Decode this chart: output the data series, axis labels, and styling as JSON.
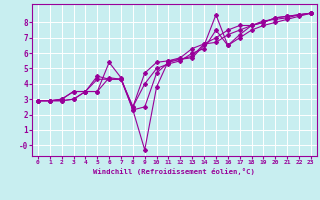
{
  "title": "",
  "xlabel": "Windchill (Refroidissement éolien,°C)",
  "ylabel": "",
  "bg_color": "#c8eef0",
  "line_color": "#990099",
  "grid_color": "#ffffff",
  "xlim": [
    -0.5,
    23.5
  ],
  "ylim": [
    -0.7,
    9.2
  ],
  "yticks": [
    0,
    1,
    2,
    3,
    4,
    5,
    6,
    7,
    8
  ],
  "ytick_labels": [
    "-0",
    "1",
    "2",
    "3",
    "4",
    "5",
    "6",
    "7",
    "8"
  ],
  "xticks": [
    0,
    1,
    2,
    3,
    4,
    5,
    6,
    7,
    8,
    9,
    10,
    11,
    12,
    13,
    14,
    15,
    16,
    17,
    18,
    19,
    20,
    21,
    22,
    23
  ],
  "series": [
    [
      2.9,
      2.9,
      2.9,
      3.0,
      3.5,
      3.5,
      5.4,
      4.4,
      2.3,
      -0.3,
      3.8,
      5.5,
      5.6,
      5.7,
      6.5,
      8.5,
      6.5,
      7.2,
      7.8,
      8.0,
      8.3,
      8.4,
      8.5,
      8.6
    ],
    [
      2.9,
      2.9,
      2.9,
      3.0,
      3.5,
      3.5,
      4.4,
      4.3,
      2.3,
      2.5,
      4.7,
      5.4,
      5.6,
      5.8,
      6.6,
      7.0,
      7.5,
      7.8,
      7.8,
      8.0,
      8.3,
      8.4,
      8.5,
      8.6
    ],
    [
      2.9,
      2.9,
      3.0,
      3.5,
      3.5,
      4.5,
      4.3,
      4.3,
      2.5,
      4.7,
      5.4,
      5.5,
      5.7,
      6.3,
      6.6,
      6.7,
      7.2,
      7.5,
      7.8,
      8.1,
      8.2,
      8.3,
      8.5,
      8.6
    ],
    [
      2.9,
      2.9,
      3.0,
      3.5,
      3.5,
      4.3,
      4.3,
      4.3,
      2.5,
      4.0,
      5.0,
      5.3,
      5.5,
      6.0,
      6.3,
      7.5,
      6.5,
      7.0,
      7.5,
      7.8,
      8.0,
      8.2,
      8.4,
      8.6
    ]
  ]
}
